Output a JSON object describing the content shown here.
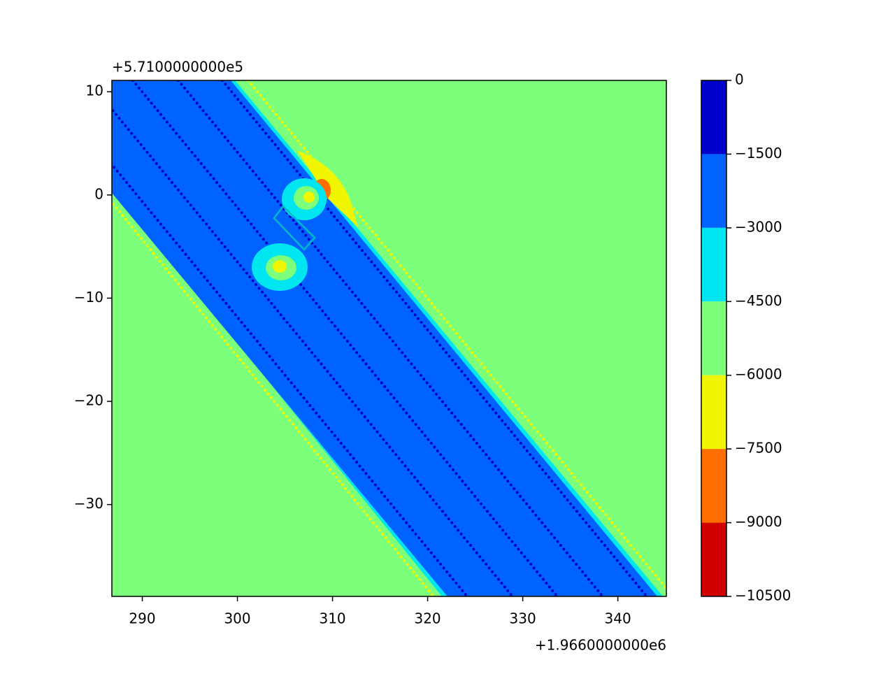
{
  "chart_data": {
    "type": "contour",
    "x_offset_label": "+1.9660000000e6",
    "y_offset_label": "+5.7100000000e5",
    "xlim": [
      286.8,
      345.1
    ],
    "xticks": [
      290,
      300,
      310,
      320,
      330,
      340
    ],
    "ylim": [
      -38.9,
      11.1
    ],
    "yticks": [
      10,
      0,
      {
        "value": -10,
        "label": "−10"
      },
      {
        "value": -20,
        "label": "−20"
      },
      {
        "value": -30,
        "label": "−30"
      }
    ],
    "colorbar": {
      "levels": [
        0,
        {
          "value": -1500,
          "label": "−1500"
        },
        {
          "value": -3000,
          "label": "−3000"
        },
        {
          "value": -4500,
          "label": "−4500"
        },
        {
          "value": -6000,
          "label": "−6000"
        },
        {
          "value": -7500,
          "label": "−7500"
        },
        {
          "value": -9000,
          "label": "−9000"
        },
        {
          "value": -10500,
          "label": "−10500"
        }
      ],
      "colors": [
        "#0000cd",
        "#0062ff",
        "#00e6f0",
        "#7cff7a",
        "#f0f500",
        "#ff6e00",
        "#d10000"
      ]
    }
  }
}
